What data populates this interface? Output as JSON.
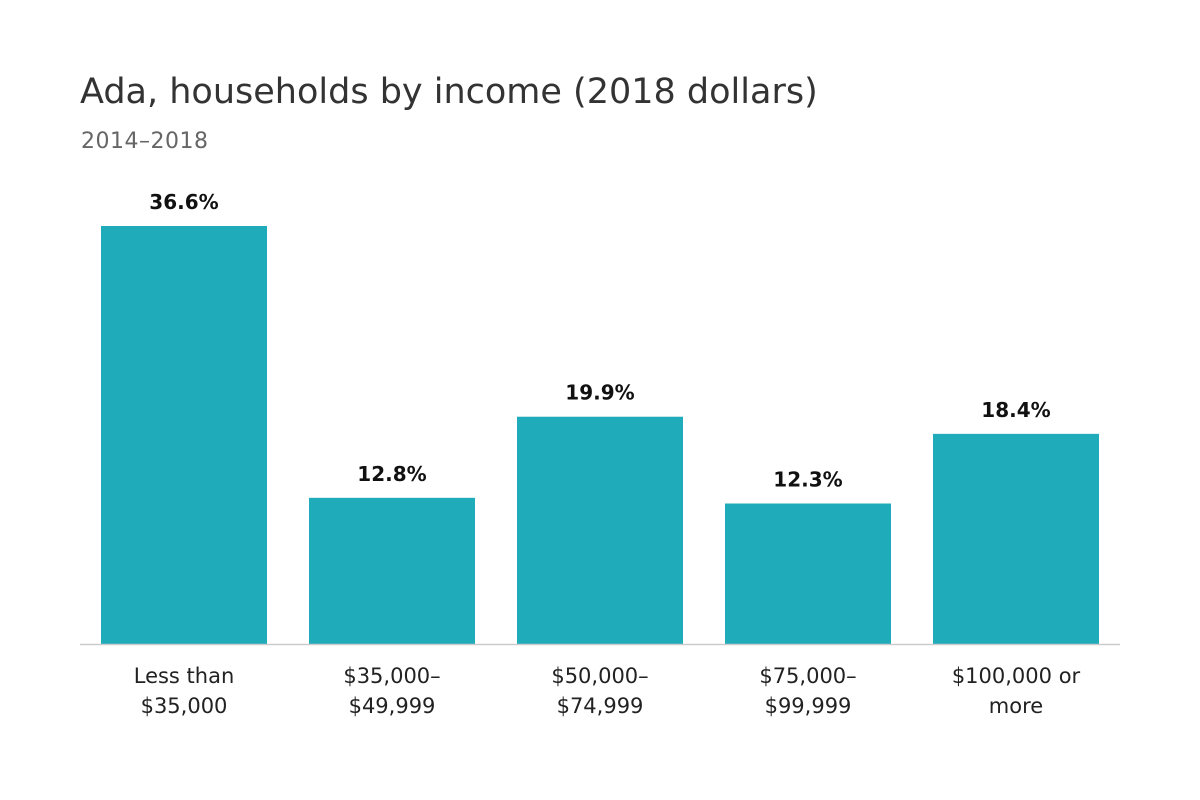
{
  "chart_data": {
    "type": "bar",
    "title": "Ada, households by income (2018 dollars)",
    "subtitle": "2014–2018",
    "categories": [
      [
        "Less than",
        "$35,000"
      ],
      [
        "$35,000–",
        "$49,999"
      ],
      [
        "$50,000–",
        "$74,999"
      ],
      [
        "$75,000–",
        "$99,999"
      ],
      [
        "$100,000 or",
        "more"
      ]
    ],
    "values": [
      36.6,
      12.8,
      19.9,
      12.3,
      18.4
    ],
    "value_labels": [
      "36.6%",
      "12.8%",
      "19.9%",
      "12.3%",
      "18.4%"
    ],
    "xlabel": "",
    "ylabel": "",
    "ylim": [
      0,
      36.6
    ],
    "grid": false,
    "legend": "none",
    "bar_color": "#20abbb",
    "baseline_color": "#cccccc"
  }
}
